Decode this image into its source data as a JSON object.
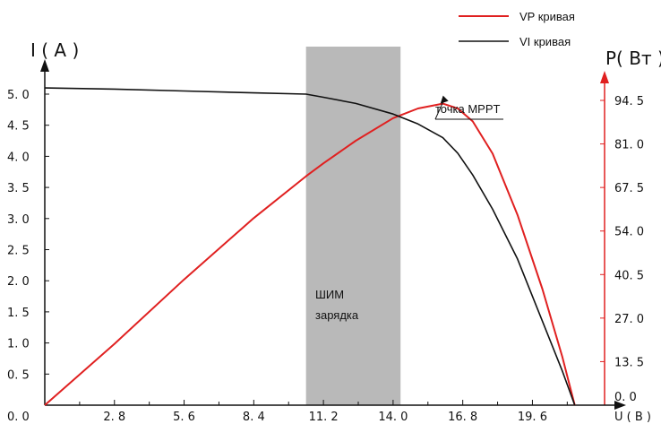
{
  "chart_data": {
    "type": "line",
    "x_ticks": [
      "2. 8",
      "5. 6",
      "8. 4",
      "11. 2",
      "14. 0",
      "16. 8",
      "19. 6"
    ],
    "x_tick_values": [
      2.8,
      5.6,
      8.4,
      11.2,
      14.0,
      16.8,
      19.6
    ],
    "origin_label": "0. 0",
    "xlabel": "U ( B )",
    "xlim": [
      0,
      22.5
    ],
    "ylabel_left": "I ( A )",
    "ylim_left": [
      0,
      5.4
    ],
    "y_ticks_left": [
      "0. 5",
      "1. 0",
      "1. 5",
      "2. 0",
      "2. 5",
      "3. 0",
      "3. 5",
      "4. 0",
      "4. 5",
      "5. 0"
    ],
    "y_tick_values_left": [
      0.5,
      1.0,
      1.5,
      2.0,
      2.5,
      3.0,
      3.5,
      4.0,
      4.5,
      5.0
    ],
    "ylabel_right": "P( Вт )",
    "ylim_right": [
      0,
      108
    ],
    "y_ticks_right": [
      "0. 0",
      "13. 5",
      "27. 0",
      "40. 5",
      "54. 0",
      "67. 5",
      "81. 0",
      "94. 5"
    ],
    "y_tick_values_right": [
      0,
      13.5,
      27.0,
      40.5,
      54.0,
      67.5,
      81.0,
      94.5
    ],
    "series": [
      {
        "name": "VP кривая",
        "color": "#e02020",
        "axis": "right",
        "x": [
          0,
          2.8,
          5.6,
          8.4,
          10.5,
          11.2,
          12.5,
          14.0,
          15.0,
          16.0,
          16.6,
          17.2,
          18.0,
          19.0,
          20.0,
          20.8,
          21.3
        ],
        "y": [
          0,
          19,
          39,
          58,
          71,
          75,
          82,
          89,
          92,
          93.5,
          92,
          88,
          78,
          59,
          36,
          15,
          0
        ]
      },
      {
        "name": "VI кривая",
        "color": "#111111",
        "axis": "left",
        "x": [
          0,
          2.8,
          5.6,
          8.4,
          10.5,
          11.2,
          12.5,
          14.0,
          15.0,
          16.0,
          16.6,
          17.2,
          18.0,
          19.0,
          20.0,
          20.8,
          21.3
        ],
        "y": [
          5.1,
          5.08,
          5.05,
          5.02,
          5.0,
          4.95,
          4.85,
          4.68,
          4.52,
          4.3,
          4.05,
          3.7,
          3.15,
          2.35,
          1.35,
          0.55,
          0
        ]
      }
    ],
    "shaded_region": {
      "x_from": 10.5,
      "x_to": 14.3,
      "label_line1": "ШИМ",
      "label_line2": "зарядка",
      "color": "#b9b9b9"
    },
    "annotation": {
      "text": "точка MPPT",
      "x": 15.9,
      "y_right": 93.5
    },
    "legend": {
      "position": "top-right",
      "entries": [
        "VP кривая",
        "VI кривая"
      ]
    },
    "grid": false
  }
}
